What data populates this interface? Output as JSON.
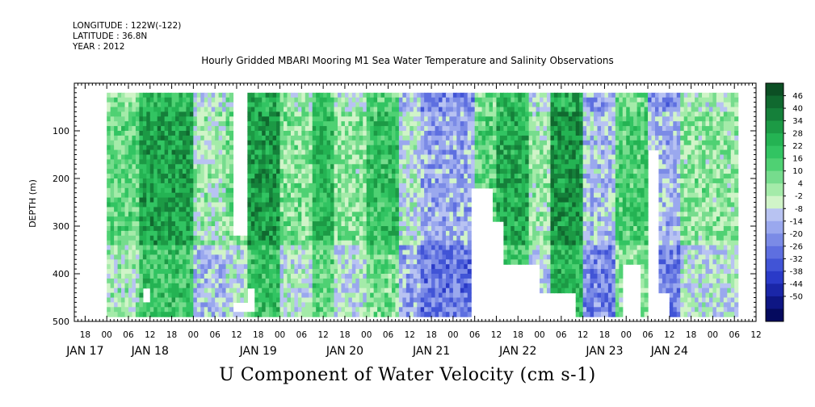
{
  "header": {
    "longitude": "LONGITUDE : 122W(-122)",
    "latitude": "LATITUDE : 36.8N",
    "year": "YEAR : 2012"
  },
  "chart_data": {
    "type": "heatmap",
    "title": "Hourly Gridded MBARI Mooring M1 Sea Water Temperature and Salinity Observations",
    "footer_label": "U Component of Water Velocity (cm s-1)",
    "ylabel": "DEPTH (m)",
    "y_range": [
      500,
      0
    ],
    "y_ticks": [
      100,
      200,
      300,
      400,
      500
    ],
    "x_range_hours": [
      -9,
      180
    ],
    "hour_ticks": [
      "18",
      "00",
      "06",
      "12",
      "18",
      "00",
      "06",
      "12",
      "18",
      "00",
      "06",
      "12",
      "18",
      "00",
      "06",
      "12",
      "18",
      "00",
      "06",
      "12",
      "18",
      "00",
      "06",
      "12",
      "18",
      "00",
      "06",
      "12",
      "18",
      "00",
      "06",
      "12"
    ],
    "date_labels": [
      {
        "label": "JAN 17",
        "hour": -6
      },
      {
        "label": "JAN 18",
        "hour": 12
      },
      {
        "label": "JAN 19",
        "hour": 42
      },
      {
        "label": "JAN 20",
        "hour": 66
      },
      {
        "label": "JAN 21",
        "hour": 90
      },
      {
        "label": "JAN 22",
        "hour": 114
      },
      {
        "label": "JAN 23",
        "hour": 138
      },
      {
        "label": "JAN 24",
        "hour": 156
      }
    ],
    "colorbar": {
      "labels": [
        "46",
        "40",
        "34",
        "28",
        "22",
        "16",
        "10",
        "4",
        "-2",
        "-8",
        "-14",
        "-20",
        "-26",
        "-32",
        "-38",
        "-44",
        "-50"
      ],
      "colors": [
        "#0c4f24",
        "#10692f",
        "#15803a",
        "#1c9a45",
        "#24b353",
        "#32c462",
        "#4fd173",
        "#76dc8d",
        "#a4eba9",
        "#d0f4c8",
        "#b8c3f2",
        "#9aa8ee",
        "#7b8be6",
        "#5e6fe0",
        "#4154d6",
        "#2a3ac8",
        "#1a26a8",
        "#0e1684",
        "#050a5e"
      ]
    },
    "data_hours_range": [
      0,
      175
    ],
    "depth_range_m": [
      20,
      485
    ],
    "periods": [
      {
        "start": 0,
        "end": 9,
        "u": 12
      },
      {
        "start": 9,
        "end": 24,
        "u": 28
      },
      {
        "start": 24,
        "end": 33,
        "u": 2
      },
      {
        "start": 33,
        "end": 39,
        "u": 8
      },
      {
        "start": 39,
        "end": 48,
        "u": 30
      },
      {
        "start": 48,
        "end": 57,
        "u": 8
      },
      {
        "start": 57,
        "end": 63,
        "u": 22
      },
      {
        "start": 63,
        "end": 72,
        "u": 6
      },
      {
        "start": 72,
        "end": 81,
        "u": 20
      },
      {
        "start": 81,
        "end": 87,
        "u": -2
      },
      {
        "start": 87,
        "end": 102,
        "u": -12
      },
      {
        "start": 102,
        "end": 108,
        "u": 14
      },
      {
        "start": 108,
        "end": 117,
        "u": 26
      },
      {
        "start": 117,
        "end": 123,
        "u": 4
      },
      {
        "start": 123,
        "end": 132,
        "u": 32
      },
      {
        "start": 132,
        "end": 141,
        "u": -8
      },
      {
        "start": 141,
        "end": 150,
        "u": 16
      },
      {
        "start": 150,
        "end": 159,
        "u": -10
      },
      {
        "start": 159,
        "end": 175,
        "u": 6
      }
    ],
    "gaps": [
      {
        "start": 35,
        "end": 39,
        "depth_top": 0,
        "depth_bottom": 320
      },
      {
        "start": 35,
        "end": 39,
        "depth_top": 460,
        "depth_bottom": 485
      },
      {
        "start": 39,
        "end": 41,
        "depth_top": 432,
        "depth_bottom": 485
      },
      {
        "start": 10,
        "end": 12,
        "depth_top": 432,
        "depth_bottom": 465
      },
      {
        "start": 101,
        "end": 107,
        "depth_top": 218,
        "depth_bottom": 500
      },
      {
        "start": 107,
        "end": 110,
        "depth_top": 290,
        "depth_bottom": 500
      },
      {
        "start": 110,
        "end": 120,
        "depth_top": 380,
        "depth_bottom": 500
      },
      {
        "start": 120,
        "end": 130,
        "depth_top": 445,
        "depth_bottom": 500
      },
      {
        "start": 143,
        "end": 148,
        "depth_top": 380,
        "depth_bottom": 500
      },
      {
        "start": 150,
        "end": 153,
        "depth_top": 140,
        "depth_bottom": 500
      },
      {
        "start": 153,
        "end": 156,
        "depth_top": 445,
        "depth_bottom": 500
      }
    ]
  }
}
